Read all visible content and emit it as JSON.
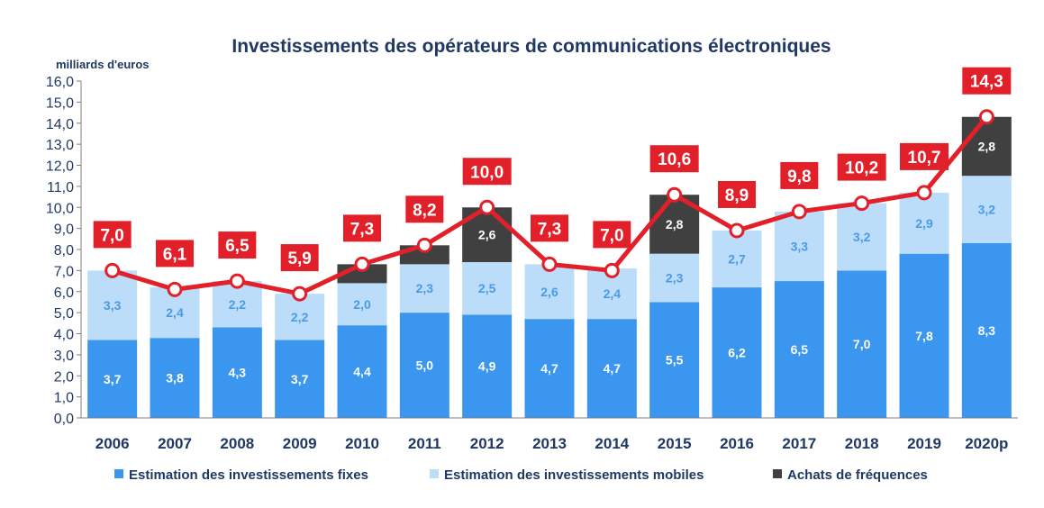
{
  "chart_data": {
    "type": "bar",
    "subtype": "stacked bar with line overlay",
    "title": "Investissements des opérateurs de communications électroniques",
    "ylabel": "milliards d'euros",
    "xlabel": "",
    "ylim": [
      0,
      16
    ],
    "yticks": [
      "0,0",
      "1,0",
      "2,0",
      "3,0",
      "4,0",
      "5,0",
      "6,0",
      "7,0",
      "8,0",
      "9,0",
      "10,0",
      "11,0",
      "12,0",
      "13,0",
      "14,0",
      "15,0",
      "16,0"
    ],
    "grid": false,
    "legend_position": "bottom",
    "categories": [
      "2006",
      "2007",
      "2008",
      "2009",
      "2010",
      "2011",
      "2012",
      "2013",
      "2014",
      "2015",
      "2016",
      "2017",
      "2018",
      "2019",
      "2020p"
    ],
    "series": [
      {
        "name": "Estimation des investissements fixes",
        "color": "#3A96EE",
        "label_color": "#ffffff",
        "values": [
          3.7,
          3.8,
          4.3,
          3.7,
          4.4,
          5.0,
          4.9,
          4.7,
          4.7,
          5.5,
          6.2,
          6.5,
          7.0,
          7.8,
          8.3
        ],
        "labels": [
          "3,7",
          "3,8",
          "4,3",
          "3,7",
          "4,4",
          "5,0",
          "4,9",
          "4,7",
          "4,7",
          "5,5",
          "6,2",
          "6,5",
          "7,0",
          "7,8",
          "8,3"
        ]
      },
      {
        "name": "Estimation des investissements  mobiles",
        "color": "#BCDDF9",
        "label_color": "#4A9BE6",
        "values": [
          3.3,
          2.4,
          2.2,
          2.2,
          2.0,
          2.3,
          2.5,
          2.6,
          2.4,
          2.3,
          2.7,
          3.3,
          3.2,
          2.9,
          3.2
        ],
        "labels": [
          "3,3",
          "2,4",
          "2,2",
          "2,2",
          "2,0",
          "2,3",
          "2,5",
          "2,6",
          "2,4",
          "2,3",
          "2,7",
          "3,3",
          "3,2",
          "2,9",
          "3,2"
        ]
      },
      {
        "name": "Achats de fréquences",
        "color": "#404040",
        "label_color": "#ffffff",
        "values": [
          0,
          0,
          0,
          0,
          0.9,
          0.9,
          2.6,
          0,
          0,
          2.8,
          0,
          0,
          0,
          0,
          2.8
        ],
        "labels": [
          "",
          "",
          "",
          "",
          "",
          "",
          "2,6",
          "",
          "",
          "2,8",
          "",
          "",
          "",
          "",
          "2,8"
        ]
      }
    ],
    "total_line": {
      "color": "#E2202A",
      "values": [
        7.0,
        6.1,
        6.5,
        5.9,
        7.3,
        8.2,
        10.0,
        7.3,
        7.0,
        10.6,
        8.9,
        9.8,
        10.2,
        10.7,
        14.3
      ],
      "labels": [
        "7,0",
        "6,1",
        "6,5",
        "5,9",
        "7,3",
        "8,2",
        "10,0",
        "7,3",
        "7,0",
        "10,6",
        "8,9",
        "9,8",
        "10,2",
        "10,7",
        "14,3"
      ]
    }
  }
}
